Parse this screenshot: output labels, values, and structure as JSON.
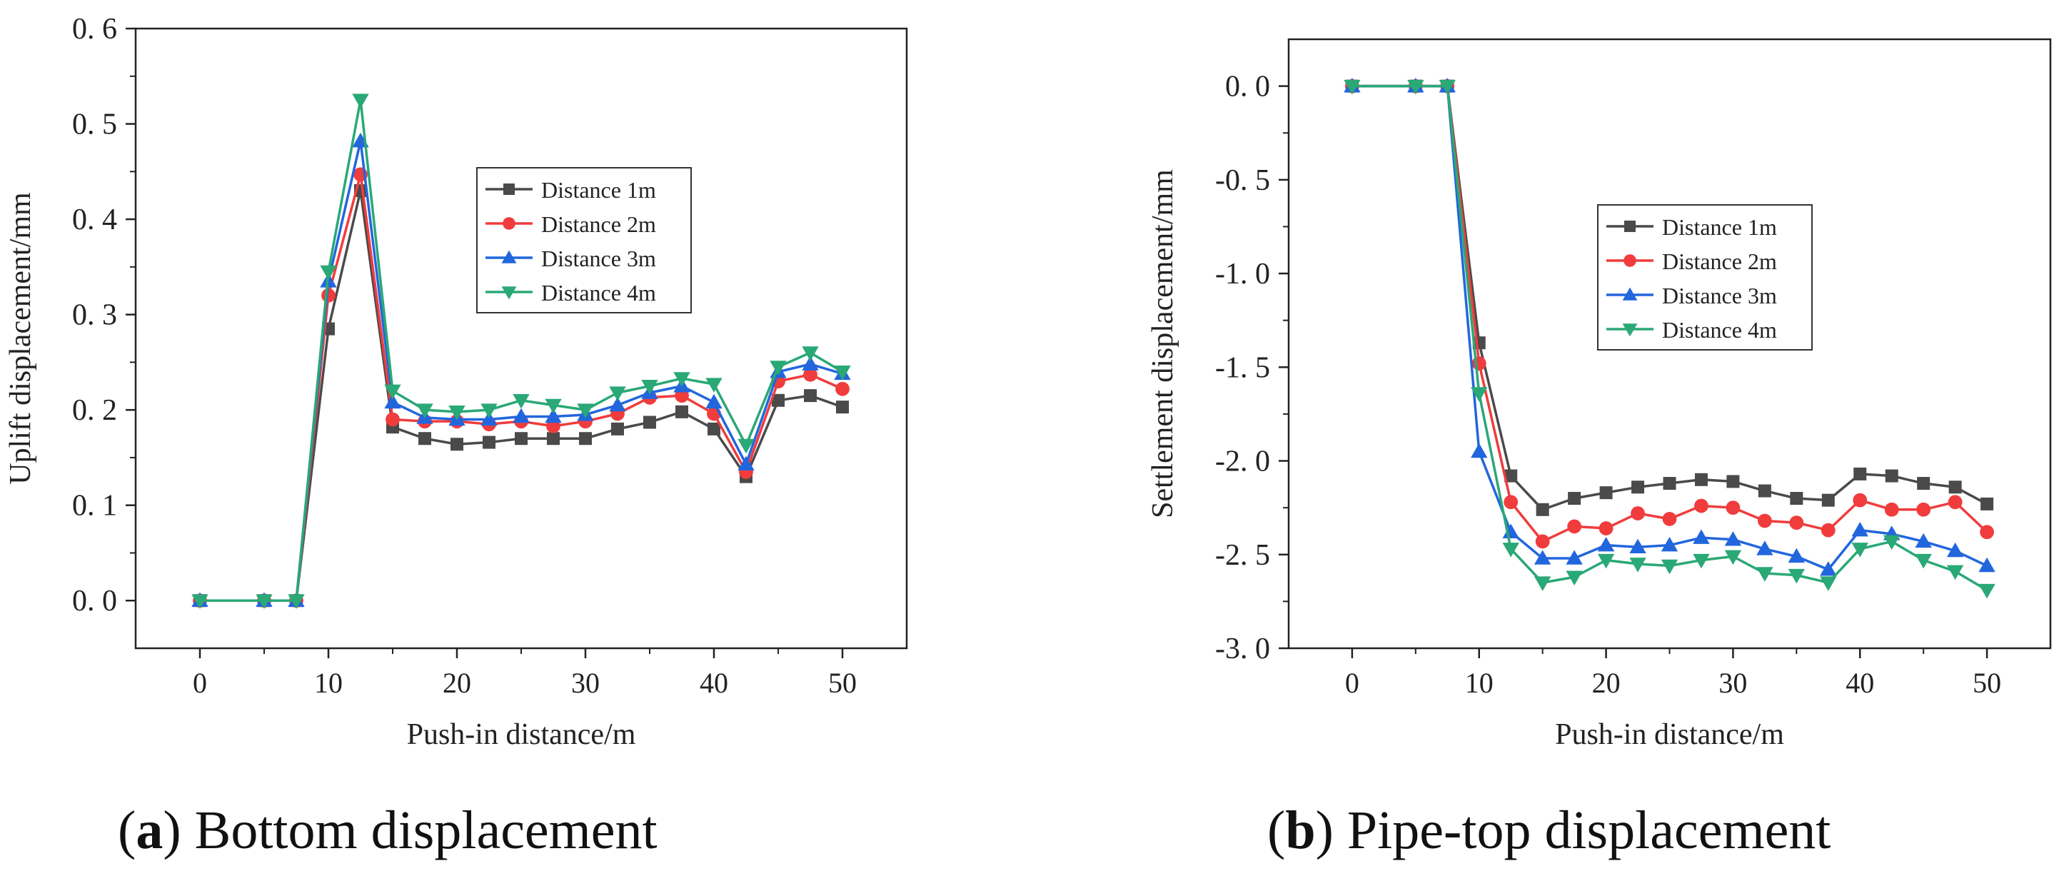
{
  "chart_data": [
    {
      "type": "line",
      "panel": "a",
      "caption_letter": "a",
      "caption_text": "Bottom displacement",
      "xlabel": "Push-in distance/m",
      "ylabel": "Uplift displacement/mm",
      "xlim": [
        -5,
        55
      ],
      "ylim": [
        -0.05,
        0.6
      ],
      "xticks": [
        0,
        10,
        20,
        30,
        40,
        50
      ],
      "yticks": [
        0.0,
        0.1,
        0.2,
        0.3,
        0.4,
        0.5,
        0.6
      ],
      "ytick_labels": [
        "0. 0",
        "0. 1",
        "0. 2",
        "0. 3",
        "0. 4",
        "0. 5",
        "0. 6"
      ],
      "legend_position": "upper-middle-right",
      "x": [
        0,
        5,
        7.5,
        10,
        12.5,
        15,
        17.5,
        20,
        22.5,
        25,
        27.5,
        30,
        32.5,
        35,
        37.5,
        40,
        42.5,
        45,
        47.5,
        50
      ],
      "series": [
        {
          "name": "Distance 1m",
          "color": "#4a4a4a",
          "marker": "square",
          "values": [
            0,
            0,
            0,
            0.285,
            0.43,
            0.182,
            0.17,
            0.164,
            0.166,
            0.17,
            0.17,
            0.17,
            0.18,
            0.187,
            0.198,
            0.18,
            0.13,
            0.21,
            0.215,
            0.203
          ]
        },
        {
          "name": "Distance 2m",
          "color": "#f03c3c",
          "marker": "circle",
          "values": [
            0,
            0,
            0,
            0.32,
            0.447,
            0.19,
            0.188,
            0.188,
            0.185,
            0.188,
            0.183,
            0.188,
            0.196,
            0.213,
            0.215,
            0.196,
            0.135,
            0.23,
            0.237,
            0.222
          ]
        },
        {
          "name": "Distance 3m",
          "color": "#2266dd",
          "marker": "triangle-up",
          "values": [
            0,
            0,
            0,
            0.335,
            0.482,
            0.208,
            0.192,
            0.19,
            0.19,
            0.193,
            0.193,
            0.195,
            0.205,
            0.218,
            0.225,
            0.208,
            0.143,
            0.24,
            0.248,
            0.238
          ]
        },
        {
          "name": "Distance 4m",
          "color": "#2aa876",
          "marker": "triangle-down",
          "values": [
            0,
            0,
            0,
            0.345,
            0.525,
            0.22,
            0.2,
            0.198,
            0.2,
            0.21,
            0.205,
            0.2,
            0.218,
            0.225,
            0.233,
            0.227,
            0.163,
            0.245,
            0.26,
            0.24
          ]
        }
      ]
    },
    {
      "type": "line",
      "panel": "b",
      "caption_letter": "b",
      "caption_text": "Pipe-top displacement",
      "xlabel": "Push-in distance/m",
      "ylabel": "Settlement displacement/mm",
      "xlim": [
        -5,
        55
      ],
      "ylim": [
        -3.0,
        0.25
      ],
      "xticks": [
        0,
        10,
        20,
        30,
        40,
        50
      ],
      "yticks": [
        0.0,
        -0.5,
        -1.0,
        -1.5,
        -2.0,
        -2.5,
        -3.0
      ],
      "ytick_labels": [
        "0. 0",
        "-0. 5",
        "-1. 0",
        "-1. 5",
        "-2. 0",
        "-2. 5",
        "-3. 0"
      ],
      "legend_position": "middle-right",
      "x": [
        0,
        5,
        7.5,
        10,
        12.5,
        15,
        17.5,
        20,
        22.5,
        25,
        27.5,
        30,
        32.5,
        35,
        37.5,
        40,
        42.5,
        45,
        47.5,
        50
      ],
      "series": [
        {
          "name": "Distance 1m",
          "color": "#4a4a4a",
          "marker": "square",
          "values": [
            0,
            0,
            0,
            -1.37,
            -2.08,
            -2.26,
            -2.2,
            -2.17,
            -2.14,
            -2.12,
            -2.1,
            -2.11,
            -2.16,
            -2.2,
            -2.21,
            -2.07,
            -2.08,
            -2.12,
            -2.14,
            -2.23
          ]
        },
        {
          "name": "Distance 2m",
          "color": "#f03c3c",
          "marker": "circle",
          "values": [
            0,
            0,
            0,
            -1.48,
            -2.22,
            -2.43,
            -2.35,
            -2.36,
            -2.28,
            -2.31,
            -2.24,
            -2.25,
            -2.32,
            -2.33,
            -2.37,
            -2.21,
            -2.26,
            -2.26,
            -2.22,
            -2.38
          ]
        },
        {
          "name": "Distance 3m",
          "color": "#2266dd",
          "marker": "triangle-up",
          "values": [
            0,
            0,
            0,
            -1.95,
            -2.38,
            -2.52,
            -2.52,
            -2.45,
            -2.46,
            -2.45,
            -2.41,
            -2.42,
            -2.47,
            -2.51,
            -2.58,
            -2.37,
            -2.39,
            -2.43,
            -2.48,
            -2.56
          ]
        },
        {
          "name": "Distance 4m",
          "color": "#2aa876",
          "marker": "triangle-down",
          "values": [
            0,
            0,
            0,
            -1.64,
            -2.47,
            -2.65,
            -2.62,
            -2.53,
            -2.55,
            -2.56,
            -2.53,
            -2.51,
            -2.6,
            -2.61,
            -2.65,
            -2.47,
            -2.43,
            -2.53,
            -2.59,
            -2.69
          ]
        }
      ]
    }
  ]
}
